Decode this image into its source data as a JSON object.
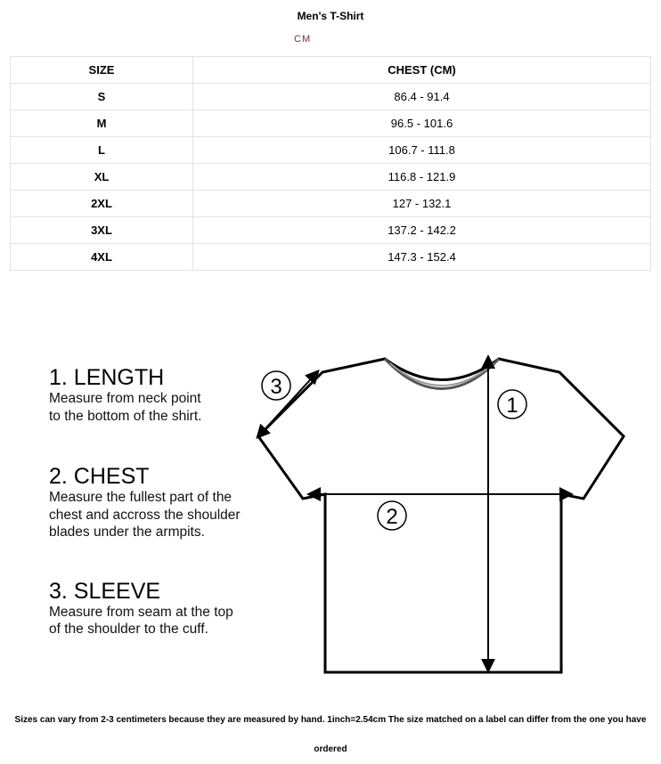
{
  "title": "Men's T-Shirt",
  "unit": "CM",
  "table": {
    "headers": [
      "SIZE",
      "CHEST (CM)"
    ],
    "rows": [
      [
        "S",
        "86.4 - 91.4"
      ],
      [
        "M",
        "96.5 - 101.6"
      ],
      [
        "L",
        "106.7 - 111.8"
      ],
      [
        "XL",
        "116.8 - 121.9"
      ],
      [
        "2XL",
        "127 - 132.1"
      ],
      [
        "3XL",
        "137.2 - 142.2"
      ],
      [
        "4XL",
        "147.3 - 152.4"
      ]
    ]
  },
  "guide": [
    {
      "heading": "1. LENGTH",
      "lines": [
        "Measure from neck point",
        "to the bottom of the shirt."
      ]
    },
    {
      "heading": "2. CHEST",
      "lines": [
        "Measure the fullest part of the",
        "chest and accross the shoulder",
        "blades under the armpits."
      ]
    },
    {
      "heading": "3. SLEEVE",
      "lines": [
        "Measure from seam at the top",
        "of the shoulder to the cuff."
      ]
    }
  ],
  "markers": [
    "1",
    "2",
    "3"
  ],
  "note": "Sizes can vary from 2-3 centimeters because they are measured by hand. 1inch=2.54cm The size matched on a label can differ from the one you have ordered"
}
